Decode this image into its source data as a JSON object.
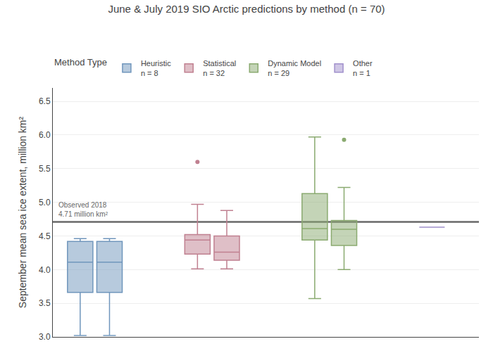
{
  "chart_data": {
    "type": "box",
    "title": "June & July 2019 SIO Arctic predictions by method (n = 70)",
    "ylabel": "September mean sea ice extent, million km²",
    "ylim": [
      3.0,
      6.7
    ],
    "yticks": [
      {
        "value": 3.0,
        "label": "3.0"
      },
      3.5,
      {
        "value": 4.0,
        "label": "4.0"
      },
      4.5,
      {
        "value": 5.0,
        "label": "5.0"
      },
      5.5,
      {
        "value": 6.0,
        "label": "6.0"
      },
      6.5
    ],
    "grid": true,
    "tick_labels": "y",
    "legend": "top",
    "legend_title": "Method Type",
    "observed": {
      "value": 4.71,
      "labels": [
        "Observed 2018",
        "4.71 million km²"
      ],
      "color": "#686868"
    },
    "series": [
      {
        "name": "Heuristic",
        "count_label": "n = 8",
        "color": "#7096bc",
        "boxes": [
          {
            "whislo": 3.02,
            "q1": 3.66,
            "med": 4.11,
            "q3": 4.42,
            "whishi": 4.46,
            "fliers": []
          },
          {
            "whislo": 3.02,
            "q1": 3.66,
            "med": 4.11,
            "q3": 4.42,
            "whishi": 4.46,
            "fliers": []
          }
        ]
      },
      {
        "name": "Statistical",
        "count_label": "n = 32",
        "color": "#c08090",
        "boxes": [
          {
            "whislo": 4.01,
            "q1": 4.23,
            "med": 4.44,
            "q3": 4.52,
            "whishi": 4.97,
            "fliers": [
              5.6
            ]
          },
          {
            "whislo": 4.01,
            "q1": 4.14,
            "med": 4.26,
            "q3": 4.5,
            "whishi": 4.88,
            "fliers": []
          }
        ]
      },
      {
        "name": "Dynamic Model",
        "count_label": "n = 29",
        "color": "#8aaa70",
        "boxes": [
          {
            "whislo": 3.57,
            "q1": 4.44,
            "med": 4.61,
            "q3": 5.13,
            "whishi": 5.97,
            "fliers": []
          },
          {
            "whislo": 4.0,
            "q1": 4.36,
            "med": 4.6,
            "q3": 4.73,
            "whishi": 5.22,
            "fliers": [
              5.93
            ]
          }
        ]
      },
      {
        "name": "Other",
        "count_label": "n = 1",
        "color": "#a090cc",
        "boxes": [],
        "single_value": 4.63
      }
    ]
  }
}
